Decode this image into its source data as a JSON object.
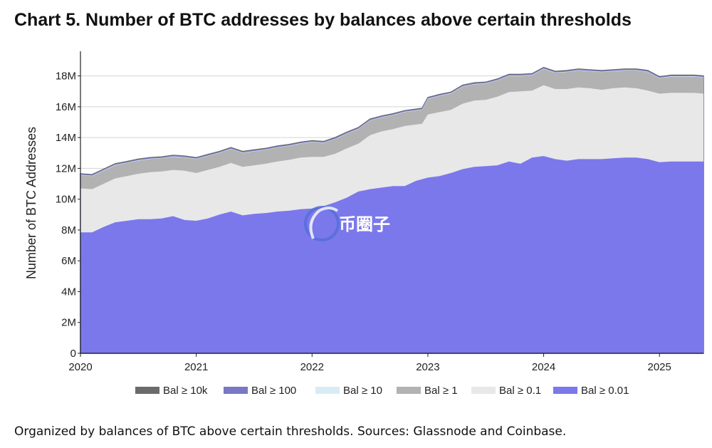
{
  "title": "Chart 5. Number of BTC addresses by balances above certain thresholds",
  "caption": "Organized by balances of BTC above certain thresholds. Sources: Glassnode and Coinbase.",
  "watermark": "币圈子",
  "chart_data": {
    "type": "area",
    "stacked": false,
    "title": "Chart 5. Number of BTC addresses by balances above certain thresholds",
    "ylabel": "Number of BTC Addresses",
    "xlabel": "",
    "xlim": [
      2020.0,
      2025.38
    ],
    "ylim": [
      0,
      19.6
    ],
    "y_unit": "M",
    "x_ticks": [
      "2020",
      "2021",
      "2022",
      "2023",
      "2024",
      "2025"
    ],
    "y_ticks": [
      "0",
      "2M",
      "4M",
      "6M",
      "8M",
      "10M",
      "12M",
      "14M",
      "16M",
      "18M"
    ],
    "legend_position": "bottom",
    "grid": true,
    "x": [
      2020.0,
      2020.1,
      2020.2,
      2020.3,
      2020.4,
      2020.5,
      2020.6,
      2020.7,
      2020.8,
      2020.9,
      2021.0,
      2021.1,
      2021.2,
      2021.3,
      2021.4,
      2021.5,
      2021.6,
      2021.7,
      2021.8,
      2021.9,
      2022.0,
      2022.1,
      2022.2,
      2022.3,
      2022.4,
      2022.5,
      2022.6,
      2022.7,
      2022.8,
      2022.9,
      2022.95,
      2023.0,
      2023.1,
      2023.2,
      2023.3,
      2023.4,
      2023.5,
      2023.6,
      2023.7,
      2023.8,
      2023.9,
      2024.0,
      2024.1,
      2024.2,
      2024.3,
      2024.4,
      2024.5,
      2024.6,
      2024.7,
      2024.8,
      2024.9,
      2025.0,
      2025.1,
      2025.2,
      2025.3,
      2025.38
    ],
    "series": [
      {
        "name": "Bal ≥ 10k",
        "color": "#6b6b6b",
        "values": [
          11.65,
          11.6,
          11.95,
          12.3,
          12.45,
          12.6,
          12.7,
          12.75,
          12.85,
          12.8,
          12.7,
          12.9,
          13.1,
          13.35,
          13.1,
          13.2,
          13.3,
          13.45,
          13.55,
          13.7,
          13.8,
          13.75,
          14.0,
          14.35,
          14.65,
          15.2,
          15.4,
          15.55,
          15.75,
          15.85,
          15.9,
          16.6,
          16.8,
          16.95,
          17.4,
          17.55,
          17.6,
          17.8,
          18.1,
          18.1,
          18.15,
          18.55,
          18.3,
          18.35,
          18.45,
          18.4,
          18.35,
          18.4,
          18.45,
          18.45,
          18.35,
          17.95,
          18.05,
          18.05,
          18.05,
          18.0
        ]
      },
      {
        "name": "Bal ≥ 100",
        "color": "#7878c4",
        "values": [
          11.6,
          11.55,
          11.9,
          12.25,
          12.4,
          12.55,
          12.65,
          12.7,
          12.8,
          12.75,
          12.65,
          12.85,
          13.05,
          13.3,
          13.05,
          13.15,
          13.25,
          13.4,
          13.5,
          13.65,
          13.75,
          13.7,
          13.95,
          14.3,
          14.6,
          15.15,
          15.35,
          15.5,
          15.7,
          15.8,
          15.85,
          16.55,
          16.75,
          16.9,
          17.35,
          17.5,
          17.55,
          17.75,
          18.05,
          18.05,
          18.1,
          18.5,
          18.25,
          18.3,
          18.4,
          18.35,
          18.3,
          18.35,
          18.4,
          18.4,
          18.3,
          17.9,
          18.0,
          18.0,
          18.0,
          17.95
        ]
      },
      {
        "name": "Bal ≥ 10",
        "color": "#d9ecf5",
        "values": [
          11.58,
          11.53,
          11.88,
          12.23,
          12.38,
          12.53,
          12.63,
          12.68,
          12.78,
          12.73,
          12.63,
          12.83,
          13.03,
          13.28,
          13.03,
          13.13,
          13.23,
          13.38,
          13.48,
          13.63,
          13.73,
          13.68,
          13.93,
          14.28,
          14.58,
          15.13,
          15.33,
          15.48,
          15.68,
          15.78,
          15.83,
          16.53,
          16.73,
          16.88,
          17.33,
          17.48,
          17.53,
          17.73,
          18.03,
          18.03,
          18.08,
          18.48,
          18.23,
          18.28,
          18.38,
          18.33,
          18.28,
          18.33,
          18.38,
          18.38,
          18.28,
          17.88,
          17.98,
          17.98,
          17.98,
          17.93
        ]
      },
      {
        "name": "Bal ≥ 1",
        "color": "#b2b2b2",
        "values": [
          11.55,
          11.5,
          11.85,
          12.2,
          12.35,
          12.5,
          12.6,
          12.65,
          12.75,
          12.7,
          12.6,
          12.8,
          13.0,
          13.25,
          13.0,
          13.1,
          13.2,
          13.35,
          13.45,
          13.6,
          13.7,
          13.65,
          13.9,
          14.25,
          14.55,
          15.1,
          15.3,
          15.45,
          15.65,
          15.75,
          15.8,
          16.5,
          16.7,
          16.85,
          17.3,
          17.45,
          17.5,
          17.7,
          18.0,
          18.0,
          18.05,
          18.45,
          18.2,
          18.25,
          18.35,
          18.3,
          18.25,
          18.3,
          18.35,
          18.35,
          18.25,
          17.85,
          17.95,
          17.95,
          17.95,
          17.9
        ]
      },
      {
        "name": "Bal ≥ 0.1",
        "color": "#e8e8e8",
        "values": [
          10.7,
          10.65,
          11.0,
          11.35,
          11.5,
          11.65,
          11.75,
          11.8,
          11.9,
          11.85,
          11.7,
          11.9,
          12.1,
          12.35,
          12.1,
          12.2,
          12.3,
          12.45,
          12.55,
          12.7,
          12.75,
          12.75,
          12.95,
          13.3,
          13.6,
          14.15,
          14.4,
          14.55,
          14.75,
          14.85,
          14.9,
          15.5,
          15.65,
          15.8,
          16.2,
          16.4,
          16.45,
          16.65,
          16.95,
          17.0,
          17.05,
          17.4,
          17.15,
          17.15,
          17.25,
          17.2,
          17.1,
          17.2,
          17.25,
          17.2,
          17.05,
          16.85,
          16.9,
          16.9,
          16.9,
          16.85
        ]
      },
      {
        "name": "Bal ≥ 0.01",
        "color": "#7b78ec",
        "values": [
          7.85,
          7.85,
          8.2,
          8.5,
          8.6,
          8.7,
          8.7,
          8.75,
          8.9,
          8.65,
          8.6,
          8.75,
          9.0,
          9.2,
          8.95,
          9.05,
          9.1,
          9.2,
          9.25,
          9.35,
          9.4,
          9.55,
          9.8,
          10.1,
          10.5,
          10.65,
          10.75,
          10.85,
          10.85,
          11.2,
          11.3,
          11.4,
          11.5,
          11.7,
          11.95,
          12.1,
          12.15,
          12.2,
          12.45,
          12.3,
          12.7,
          12.8,
          12.6,
          12.5,
          12.6,
          12.6,
          12.6,
          12.65,
          12.7,
          12.7,
          12.6,
          12.4,
          12.45,
          12.45,
          12.45,
          12.45
        ]
      }
    ]
  }
}
